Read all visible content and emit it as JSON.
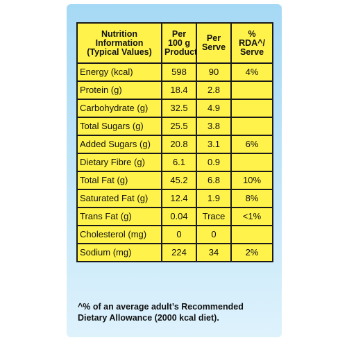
{
  "header": {
    "col1": [
      "Nutrition",
      "Information",
      "(Typical Values)"
    ],
    "col2": [
      "Per",
      "100 g",
      "Product"
    ],
    "col3": [
      "Per",
      "Serve"
    ],
    "col4": [
      "% RDA^/",
      "Serve"
    ]
  },
  "rows": [
    {
      "label": "Energy (kcal)",
      "per100": "598",
      "serve": "90",
      "rda": "4%",
      "sub": false
    },
    {
      "label": "Protein (g)",
      "per100": "18.4",
      "serve": "2.8",
      "rda": "",
      "sub": false
    },
    {
      "label": "Carbohydrate (g)",
      "per100": "32.5",
      "serve": "4.9",
      "rda": "",
      "sub": false
    },
    {
      "label": "Total Sugars (g)",
      "per100": "25.5",
      "serve": "3.8",
      "rda": "",
      "sub": true
    },
    {
      "label": "Added Sugars (g)",
      "per100": "20.8",
      "serve": "3.1",
      "rda": "6%",
      "sub": true
    },
    {
      "label": "Dietary Fibre (g)",
      "per100": "6.1",
      "serve": "0.9",
      "rda": "",
      "sub": true
    },
    {
      "label": "Total Fat (g)",
      "per100": "45.2",
      "serve": "6.8",
      "rda": "10%",
      "sub": false
    },
    {
      "label": "Saturated Fat (g)",
      "per100": "12.4",
      "serve": "1.9",
      "rda": "8%",
      "sub": true
    },
    {
      "label": "Trans Fat (g)",
      "per100": "0.04",
      "serve": "Trace",
      "rda": "<1%",
      "sub": true
    },
    {
      "label": "Cholesterol (mg)",
      "per100": "0",
      "serve": "0",
      "rda": "",
      "sub": true
    },
    {
      "label": "Sodium (mg)",
      "per100": "224",
      "serve": "34",
      "rda": "2%",
      "sub": false
    }
  ],
  "footnote": [
    "^% of an average adult’s Recommended",
    "Dietary Allowance (2000 kcal diet)."
  ],
  "colors": {
    "table_bg": "#fef24b",
    "panel_top": "#a6d9f5",
    "panel_bottom": "#def2fc"
  }
}
